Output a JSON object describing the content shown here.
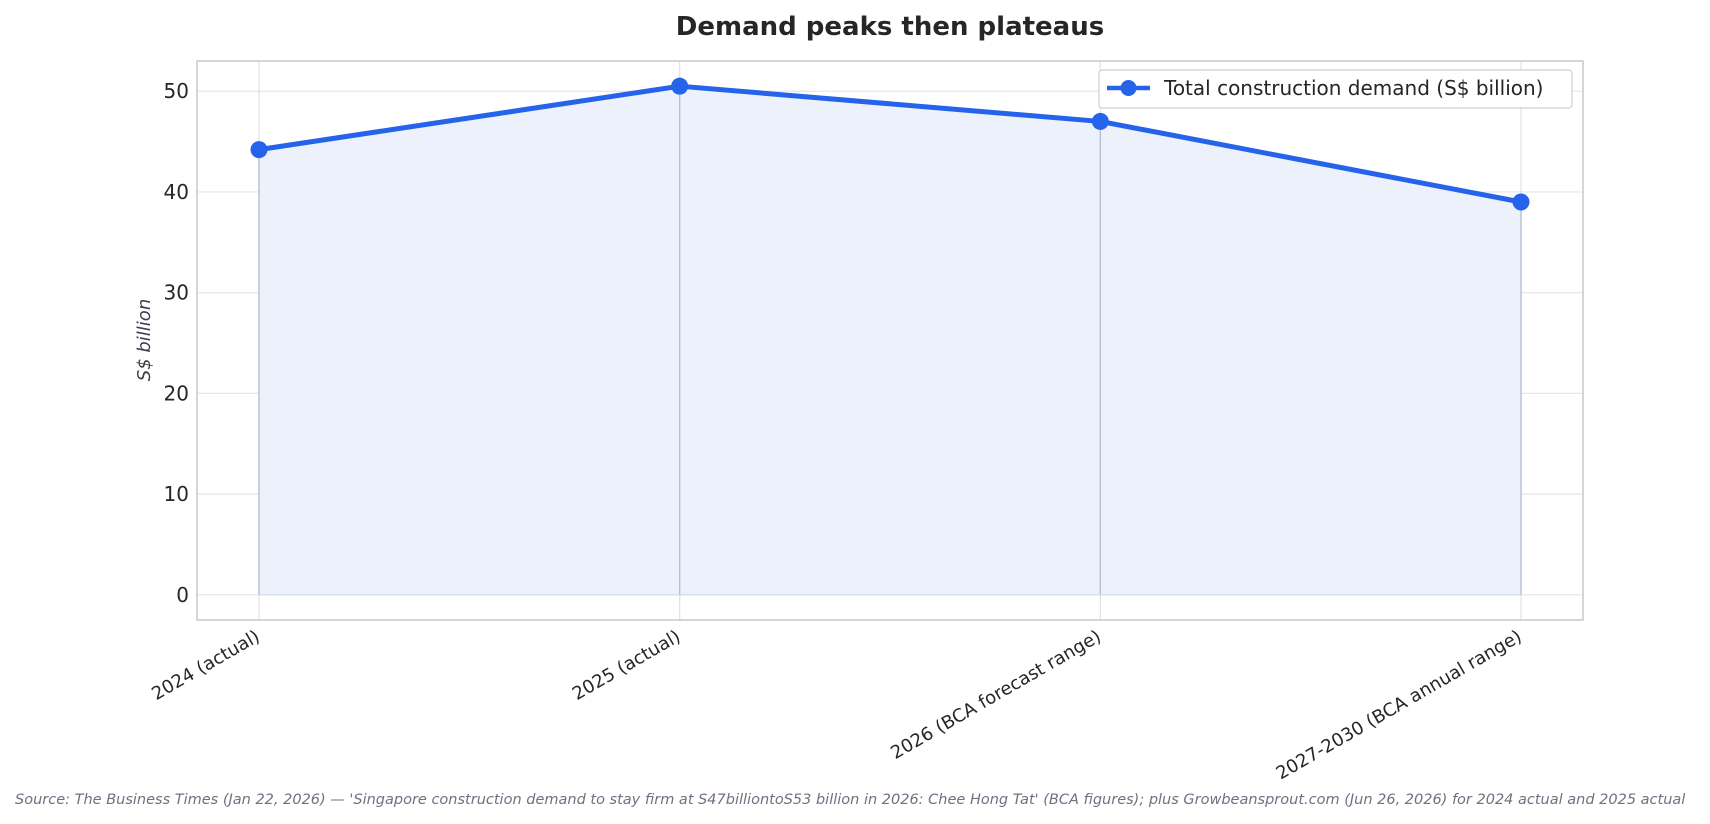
{
  "chart_data": {
    "type": "line",
    "title": "Demand peaks then plateaus",
    "ylabel": "S$ billion",
    "xlabel": "",
    "categories": [
      "2024 (actual)",
      "2025 (actual)",
      "2026 (BCA forecast range)",
      "2027-2030 (BCA annual range)"
    ],
    "series": [
      {
        "name": "Total construction demand (S$ billion)",
        "values": [
          44.2,
          50.5,
          47.0,
          39.0
        ],
        "color": "#2563eb"
      }
    ],
    "fill": "area-under-line",
    "fill_color": "#ecf1fc",
    "ylim": [
      -2.5,
      53
    ],
    "yticks": [
      0,
      10,
      20,
      30,
      40,
      50
    ],
    "grid": true,
    "legend_position": "top-right",
    "source": "Source: The Business Times (Jan 22, 2026) — 'Singapore construction demand to stay firm at S47billiontoS53 billion in 2026: Chee Hong Tat' (BCA figures); plus Growbeansprout.com (Jun 26, 2026) for 2024 actual and 2025 actual"
  }
}
